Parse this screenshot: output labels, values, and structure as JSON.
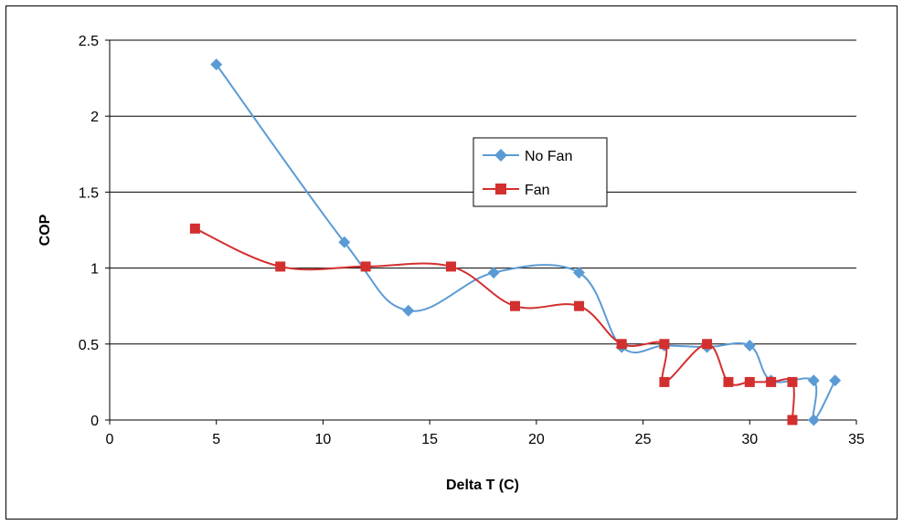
{
  "chart_data": {
    "type": "line",
    "xlabel": "Delta T (C)",
    "ylabel": "COP",
    "xlim": [
      0,
      35
    ],
    "ylim": [
      0,
      2.5
    ],
    "x_ticks": [
      0,
      5,
      10,
      15,
      20,
      25,
      30,
      35
    ],
    "y_ticks": [
      0,
      0.5,
      1,
      1.5,
      2,
      2.5
    ],
    "x_tick_labels": [
      "0",
      "5",
      "10",
      "15",
      "20",
      "25",
      "30",
      "35"
    ],
    "y_tick_labels": [
      "0",
      "0.5",
      "1",
      "1.5",
      "2",
      "2.5"
    ],
    "grid": "horizontal major gridlines",
    "legend_position": "upper-center",
    "smoothed": true,
    "series": [
      {
        "name": "No Fan",
        "color": "#5B9BD5",
        "marker": "diamond",
        "points": [
          [
            5,
            2.34
          ],
          [
            11,
            1.17
          ],
          [
            14,
            0.72
          ],
          [
            18,
            0.97
          ],
          [
            22,
            0.97
          ],
          [
            24,
            0.48
          ],
          [
            26,
            0.49
          ],
          [
            28,
            0.48
          ],
          [
            30,
            0.49
          ],
          [
            31,
            0.26
          ],
          [
            33,
            0.26
          ],
          [
            33,
            0
          ],
          [
            34,
            0.26
          ]
        ]
      },
      {
        "name": "Fan",
        "color": "#D32F2F",
        "marker": "square",
        "points": [
          [
            4,
            1.26
          ],
          [
            8,
            1.01
          ],
          [
            12,
            1.01
          ],
          [
            16,
            1.01
          ],
          [
            19,
            0.75
          ],
          [
            22,
            0.75
          ],
          [
            24,
            0.5
          ],
          [
            26,
            0.5
          ],
          [
            26,
            0.25
          ],
          [
            28,
            0.5
          ],
          [
            29,
            0.25
          ],
          [
            30,
            0.25
          ],
          [
            31,
            0.25
          ],
          [
            32,
            0.25
          ],
          [
            32,
            0
          ]
        ]
      }
    ]
  }
}
